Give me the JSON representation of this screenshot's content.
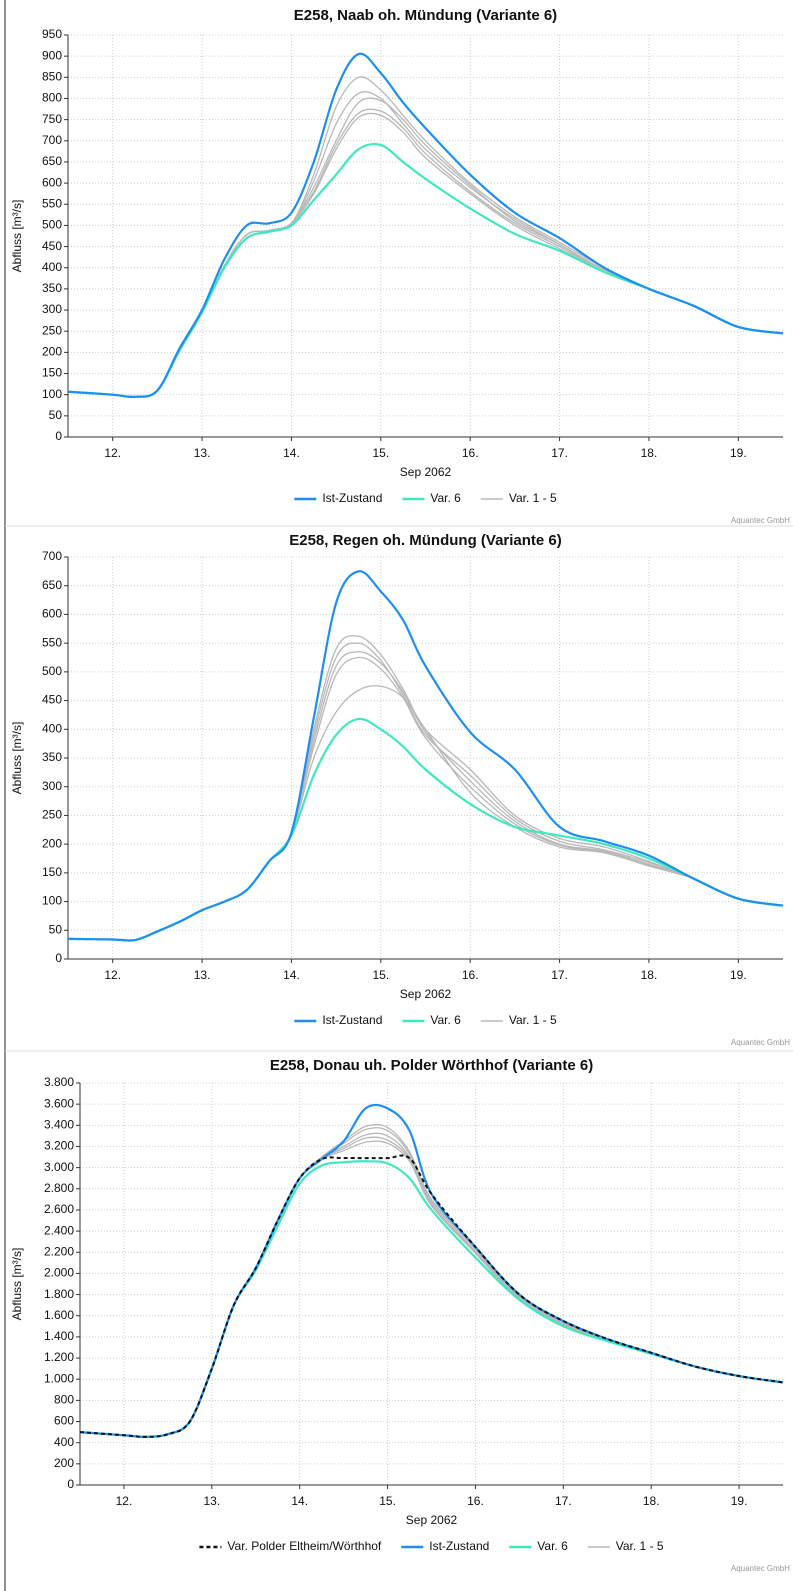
{
  "chart_data": [
    {
      "type": "line",
      "title": "E258, Naab oh. Mündung (Variante 6)",
      "ylabel": "Abfluss [m³/s]",
      "xlabel": "Sep 2062",
      "credit": "Aquantec GmbH",
      "xlim": [
        12,
        20
      ],
      "ylim": [
        0,
        950
      ],
      "yticks": [
        0,
        50,
        100,
        150,
        200,
        250,
        300,
        350,
        400,
        450,
        500,
        550,
        600,
        650,
        700,
        750,
        800,
        850,
        900,
        950
      ],
      "xticks": [
        {
          "value": 12.5,
          "label": "12."
        },
        {
          "value": 13.5,
          "label": "13."
        },
        {
          "value": 14.5,
          "label": "14."
        },
        {
          "value": 15.5,
          "label": "15."
        },
        {
          "value": 16.5,
          "label": "16."
        },
        {
          "value": 17.5,
          "label": "17."
        },
        {
          "value": 18.5,
          "label": "18."
        },
        {
          "value": 19.5,
          "label": "19."
        }
      ],
      "grid": true,
      "x": [
        12,
        12.5,
        12.75,
        13,
        13.25,
        13.5,
        13.75,
        14,
        14.25,
        14.5,
        14.75,
        15,
        15.25,
        15.5,
        15.75,
        16,
        16.5,
        17,
        17.5,
        18,
        18.5,
        19,
        19.5,
        20
      ],
      "series": [
        {
          "name": "Ist-Zustand",
          "color": "#1e8ff0",
          "values": [
            107,
            100,
            95,
            110,
            210,
            300,
            420,
            500,
            505,
            530,
            650,
            820,
            905,
            860,
            790,
            730,
            620,
            530,
            470,
            400,
            350,
            310,
            260,
            245
          ]
        },
        {
          "name": "Var. 6",
          "color": "#40e8c0",
          "values": [
            107,
            100,
            95,
            110,
            205,
            295,
            400,
            470,
            485,
            500,
            560,
            620,
            680,
            690,
            650,
            610,
            540,
            480,
            440,
            390,
            350,
            310,
            260,
            245
          ]
        },
        {
          "name": "Var. 1 - 5",
          "color": "#b8b8b8",
          "lines": [
            [
              107,
              100,
              95,
              110,
              205,
              295,
              405,
              478,
              488,
              505,
              620,
              780,
              850,
              820,
              760,
              700,
              600,
              520,
              460,
              400,
              350,
              310,
              260,
              245
            ],
            [
              107,
              100,
              95,
              110,
              205,
              295,
              405,
              478,
              488,
              505,
              605,
              740,
              812,
              800,
              740,
              680,
              590,
              515,
              455,
              395,
              350,
              310,
              260,
              245
            ],
            [
              107,
              100,
              95,
              110,
              205,
              295,
              405,
              478,
              488,
              505,
              590,
              700,
              790,
              795,
              750,
              690,
              595,
              510,
              455,
              395,
              350,
              310,
              260,
              245
            ],
            [
              107,
              100,
              95,
              110,
              205,
              295,
              405,
              478,
              488,
              505,
              580,
              690,
              765,
              770,
              730,
              670,
              580,
              505,
              450,
              395,
              350,
              310,
              260,
              245
            ],
            [
              107,
              100,
              95,
              110,
              205,
              295,
              405,
              478,
              488,
              505,
              575,
              680,
              755,
              760,
              720,
              660,
              575,
              500,
              445,
              395,
              350,
              310,
              260,
              245
            ]
          ]
        }
      ]
    },
    {
      "type": "line",
      "title": "E258, Regen oh. Mündung (Variante 6)",
      "ylabel": "Abfluss [m³/s]",
      "xlabel": "Sep 2062",
      "credit": "Aquantec GmbH",
      "xlim": [
        12,
        20
      ],
      "ylim": [
        0,
        700
      ],
      "yticks": [
        0,
        50,
        100,
        150,
        200,
        250,
        300,
        350,
        400,
        450,
        500,
        550,
        600,
        650,
        700
      ],
      "xticks": [
        {
          "value": 12.5,
          "label": "12."
        },
        {
          "value": 13.5,
          "label": "13."
        },
        {
          "value": 14.5,
          "label": "14."
        },
        {
          "value": 15.5,
          "label": "15."
        },
        {
          "value": 16.5,
          "label": "16."
        },
        {
          "value": 17.5,
          "label": "17."
        },
        {
          "value": 18.5,
          "label": "18."
        },
        {
          "value": 19.5,
          "label": "19."
        }
      ],
      "grid": true,
      "x": [
        12,
        12.5,
        12.75,
        13,
        13.25,
        13.5,
        13.75,
        14,
        14.25,
        14.5,
        14.75,
        15,
        15.25,
        15.5,
        15.75,
        16,
        16.5,
        17,
        17.5,
        18,
        18.5,
        19,
        19.5,
        20
      ],
      "series": [
        {
          "name": "Ist-Zustand",
          "color": "#1e8ff0",
          "values": [
            35,
            34,
            33,
            48,
            65,
            85,
            100,
            120,
            170,
            220,
            420,
            620,
            675,
            640,
            590,
            510,
            395,
            330,
            230,
            205,
            180,
            140,
            105,
            93
          ]
        },
        {
          "name": "Var. 6",
          "color": "#40e8c0",
          "values": [
            35,
            34,
            33,
            48,
            65,
            85,
            100,
            120,
            170,
            215,
            320,
            390,
            418,
            400,
            370,
            330,
            270,
            230,
            215,
            200,
            175,
            140,
            105,
            93
          ]
        },
        {
          "name": "Var. 1 - 5",
          "color": "#b8b8b8",
          "lines": [
            [
              35,
              34,
              33,
              48,
              65,
              85,
              100,
              120,
              170,
              220,
              400,
              540,
              562,
              530,
              470,
              400,
              330,
              250,
              210,
              195,
              170,
              140,
              105,
              93
            ],
            [
              35,
              34,
              33,
              48,
              65,
              85,
              100,
              120,
              170,
              220,
              390,
              525,
              550,
              520,
              460,
              390,
              320,
              245,
              205,
              190,
              168,
              140,
              105,
              93
            ],
            [
              35,
              34,
              33,
              48,
              65,
              85,
              100,
              120,
              170,
              220,
              380,
              510,
              535,
              515,
              465,
              395,
              310,
              240,
              200,
              188,
              165,
              140,
              105,
              93
            ],
            [
              35,
              34,
              33,
              48,
              65,
              85,
              100,
              120,
              170,
              220,
              370,
              495,
              525,
              505,
              455,
              385,
              300,
              235,
              198,
              186,
              163,
              140,
              105,
              93
            ],
            [
              35,
              34,
              33,
              48,
              65,
              85,
              100,
              120,
              170,
              218,
              350,
              430,
              468,
              475,
              455,
              400,
              290,
              230,
              195,
              185,
              162,
              140,
              105,
              93
            ]
          ]
        }
      ]
    },
    {
      "type": "line",
      "title": "E258, Donau uh. Polder Wörthhof (Variante 6)",
      "ylabel": "Abfluss [m³/s]",
      "xlabel": "Sep 2062",
      "credit": "Aquantec GmbH",
      "xlim": [
        12,
        20
      ],
      "ylim": [
        0,
        3800
      ],
      "yticks": [
        0,
        200,
        400,
        600,
        800,
        {
          "value": 1000,
          "label": "1.000"
        },
        {
          "value": 1200,
          "label": "1.200"
        },
        {
          "value": 1400,
          "label": "1.400"
        },
        {
          "value": 1600,
          "label": "1.600"
        },
        {
          "value": 1800,
          "label": "1.800"
        },
        {
          "value": 2000,
          "label": "2.000"
        },
        {
          "value": 2200,
          "label": "2.200"
        },
        {
          "value": 2400,
          "label": "2.400"
        },
        {
          "value": 2600,
          "label": "2.600"
        },
        {
          "value": 2800,
          "label": "2.800"
        },
        {
          "value": 3000,
          "label": "3.000"
        },
        {
          "value": 3200,
          "label": "3.200"
        },
        {
          "value": 3400,
          "label": "3.400"
        },
        {
          "value": 3600,
          "label": "3.600"
        },
        {
          "value": 3800,
          "label": "3.800"
        }
      ],
      "xticks": [
        {
          "value": 12.5,
          "label": "12."
        },
        {
          "value": 13.5,
          "label": "13."
        },
        {
          "value": 14.5,
          "label": "14."
        },
        {
          "value": 15.5,
          "label": "15."
        },
        {
          "value": 16.5,
          "label": "16."
        },
        {
          "value": 17.5,
          "label": "17."
        },
        {
          "value": 18.5,
          "label": "18."
        },
        {
          "value": 19.5,
          "label": "19."
        }
      ],
      "grid": true,
      "x": [
        12,
        12.5,
        12.75,
        13,
        13.25,
        13.5,
        13.75,
        14,
        14.25,
        14.5,
        14.75,
        15,
        15.25,
        15.5,
        15.75,
        16,
        16.5,
        17,
        17.5,
        18,
        18.5,
        19,
        19.5,
        20
      ],
      "series": [
        {
          "name": "Var. Polder Eltheim/Wörthhof",
          "color": "#111111",
          "dash": true,
          "values": [
            500,
            470,
            455,
            480,
            600,
            1100,
            1700,
            2050,
            2500,
            2900,
            3080,
            3090,
            3090,
            3090,
            3090,
            2750,
            2250,
            1800,
            1550,
            1380,
            1250,
            1120,
            1030,
            970
          ]
        },
        {
          "name": "Ist-Zustand",
          "color": "#1e8ff0",
          "values": [
            500,
            470,
            455,
            480,
            600,
            1100,
            1700,
            2050,
            2500,
            2900,
            3080,
            3250,
            3560,
            3560,
            3350,
            2750,
            2250,
            1800,
            1550,
            1380,
            1250,
            1120,
            1030,
            970
          ]
        },
        {
          "name": "Var. 6",
          "color": "#40e8c0",
          "values": [
            500,
            470,
            455,
            480,
            600,
            1100,
            1700,
            2030,
            2450,
            2850,
            3020,
            3050,
            3060,
            3040,
            2900,
            2600,
            2150,
            1750,
            1500,
            1360,
            1240,
            1120,
            1030,
            970
          ]
        },
        {
          "name": "Var. 1 - 5",
          "color": "#b8b8b8",
          "lines": [
            [
              500,
              470,
              455,
              480,
              600,
              1100,
              1700,
              2050,
              2500,
              2900,
              3100,
              3250,
              3390,
              3380,
              3150,
              2700,
              2250,
              1790,
              1550,
              1380,
              1250,
              1120,
              1030,
              970
            ],
            [
              500,
              470,
              455,
              480,
              600,
              1100,
              1700,
              2050,
              2500,
              2900,
              3100,
              3230,
              3360,
              3350,
              3130,
              2680,
              2230,
              1780,
              1540,
              1375,
              1250,
              1120,
              1030,
              970
            ],
            [
              500,
              470,
              455,
              480,
              600,
              1100,
              1700,
              2050,
              2500,
              2900,
              3090,
              3200,
              3310,
              3300,
              3100,
              2660,
              2210,
              1770,
              1530,
              1370,
              1250,
              1120,
              1030,
              970
            ],
            [
              500,
              470,
              455,
              480,
              600,
              1100,
              1700,
              2050,
              2500,
              2900,
              3090,
              3180,
              3280,
              3260,
              3080,
              2650,
              2200,
              1760,
              1520,
              1365,
              1250,
              1120,
              1030,
              970
            ],
            [
              500,
              470,
              455,
              480,
              600,
              1100,
              1700,
              2050,
              2500,
              2900,
              3080,
              3160,
              3240,
              3230,
              3060,
              2640,
              2190,
              1750,
              1510,
              1360,
              1250,
              1120,
              1030,
              970
            ]
          ]
        }
      ]
    }
  ]
}
